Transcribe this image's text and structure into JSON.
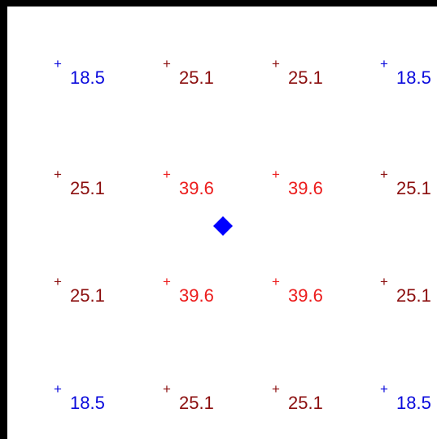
{
  "cross_glyph": "+",
  "colors": {
    "low": "#0a0adc",
    "mid": "#8b0e0e",
    "high": "#ec1c1c",
    "marker": "#0000ff",
    "border": "#000000"
  },
  "grid": {
    "rows": [
      [
        {
          "value": "18.5",
          "level": "low"
        },
        {
          "value": "25.1",
          "level": "mid"
        },
        {
          "value": "25.1",
          "level": "mid"
        },
        {
          "value": "18.5",
          "level": "low"
        }
      ],
      [
        {
          "value": "25.1",
          "level": "mid"
        },
        {
          "value": "39.6",
          "level": "high"
        },
        {
          "value": "39.6",
          "level": "high"
        },
        {
          "value": "25.1",
          "level": "mid"
        }
      ],
      [
        {
          "value": "25.1",
          "level": "mid"
        },
        {
          "value": "39.6",
          "level": "high"
        },
        {
          "value": "39.6",
          "level": "high"
        },
        {
          "value": "25.1",
          "level": "mid"
        }
      ],
      [
        {
          "value": "18.5",
          "level": "low"
        },
        {
          "value": "25.1",
          "level": "mid"
        },
        {
          "value": "25.1",
          "level": "mid"
        },
        {
          "value": "18.5",
          "level": "low"
        }
      ]
    ]
  },
  "marker": {
    "shape": "diamond"
  }
}
